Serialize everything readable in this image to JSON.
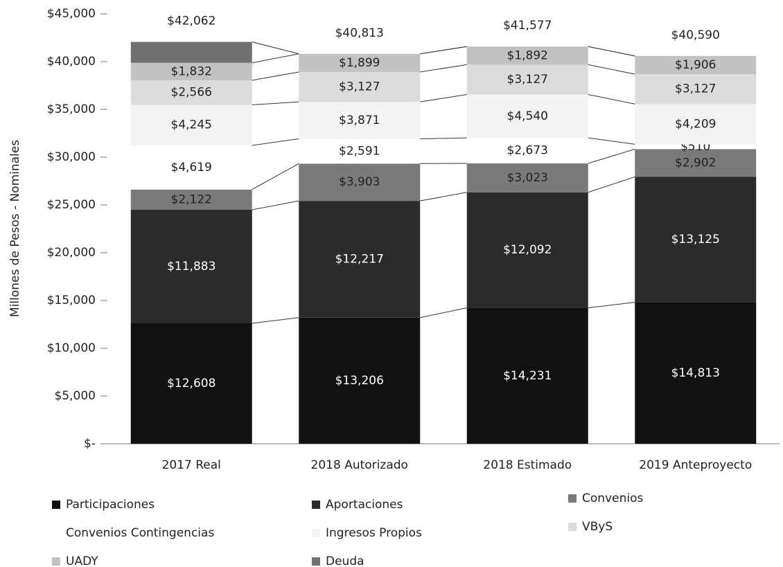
{
  "chart_data": {
    "type": "stacked_bar",
    "y_axis_label": "Millones de Pesos - Nominales",
    "categories": [
      "2017 Real",
      "2018 Autorizado",
      "2018 Estimado",
      "2019 Anteproyecto"
    ],
    "ylim": [
      0,
      45000
    ],
    "yticks": [
      {
        "value": 0,
        "label": "$-"
      },
      {
        "value": 5000,
        "label": "$5,000"
      },
      {
        "value": 10000,
        "label": "$10,000"
      },
      {
        "value": 15000,
        "label": "$15,000"
      },
      {
        "value": 20000,
        "label": "$20,000"
      },
      {
        "value": 25000,
        "label": "$25,000"
      },
      {
        "value": 30000,
        "label": "$30,000"
      },
      {
        "value": 35000,
        "label": "$35,000"
      },
      {
        "value": 40000,
        "label": "$40,000"
      },
      {
        "value": 45000,
        "label": "$45,000"
      }
    ],
    "series": [
      {
        "name": "Participaciones",
        "color": "#111111",
        "values": [
          12608,
          13206,
          14231,
          14813
        ],
        "value_labels": [
          "$12,608",
          "$13,206",
          "$14,231",
          "$14,813"
        ]
      },
      {
        "name": "Aportaciones",
        "color": "#2b2b2b",
        "values": [
          11883,
          12217,
          12092,
          13125
        ],
        "value_labels": [
          "$11,883",
          "$12,217",
          "$12,092",
          "$13,125"
        ]
      },
      {
        "name": "Convenios",
        "color": "#7a7a7a",
        "values": [
          2122,
          3903,
          3023,
          2902
        ],
        "value_labels": [
          "$2,122",
          "$3,903",
          "$3,023",
          "$2,902"
        ]
      },
      {
        "name": "Convenios Contingencias",
        "color": "#ffffff",
        "values": [
          4619,
          2591,
          2673,
          510
        ],
        "value_labels": [
          "$4,619",
          "$2,591",
          "$2,673",
          "$510"
        ]
      },
      {
        "name": "Ingresos Propios",
        "color": "#f3f3f3",
        "values": [
          4245,
          3871,
          4540,
          4209
        ],
        "value_labels": [
          "$4,245",
          "$3,871",
          "$4,540",
          "$4,209"
        ]
      },
      {
        "name": "VByS",
        "color": "#dcdcdc",
        "values": [
          2566,
          3127,
          3127,
          3127
        ],
        "value_labels": [
          "$2,566",
          "$3,127",
          "$3,127",
          "$3,127"
        ]
      },
      {
        "name": "UADY",
        "color": "#c2c2c2",
        "values": [
          1832,
          1899,
          1892,
          1906
        ],
        "value_labels": [
          "$1,832",
          "$1,899",
          "$1,892",
          "$1,906"
        ]
      },
      {
        "name": "Deuda",
        "color": "#707070",
        "values": [
          2187,
          0,
          0,
          0
        ],
        "value_labels": [
          null,
          null,
          null,
          null
        ]
      }
    ],
    "totals": [
      42062,
      40813,
      41577,
      40590
    ],
    "total_labels": [
      "$42,062",
      "$40,813",
      "$41,577",
      "$40,590"
    ]
  }
}
